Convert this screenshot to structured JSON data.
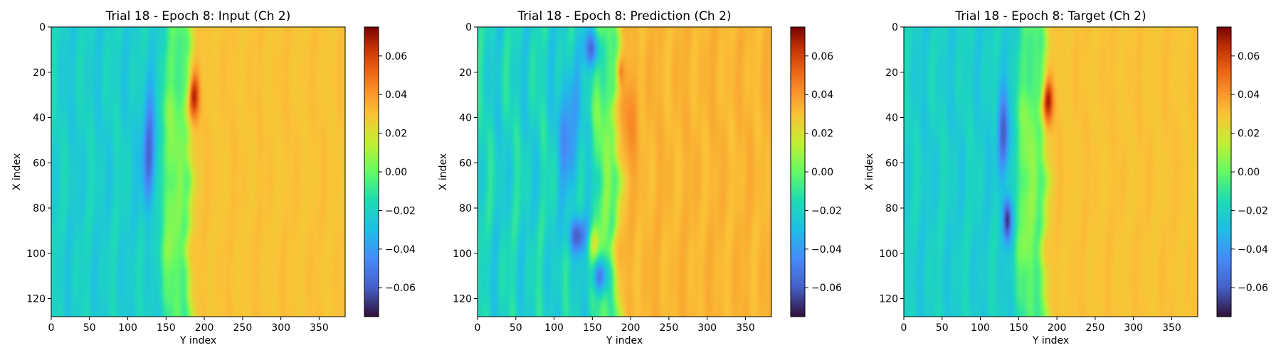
{
  "chart_data": [
    {
      "type": "heatmap",
      "title": "Trial 18 - Epoch 8: Input (Ch 2)",
      "xlabel": "Y index",
      "ylabel": "X index",
      "xlim": [
        0,
        384
      ],
      "ylim": [
        128,
        0
      ],
      "xticks": [
        "0",
        "50",
        "100",
        "150",
        "200",
        "250",
        "300",
        "350"
      ],
      "yticks": [
        "0",
        "20",
        "40",
        "60",
        "80",
        "100",
        "120"
      ],
      "colorbar": {
        "range": [
          -0.075,
          0.075
        ],
        "ticks": [
          "0.06",
          "0.04",
          "0.02",
          "0.00",
          "−0.02",
          "−0.04",
          "−0.06"
        ],
        "colormap": "turbo"
      },
      "field": {
        "front_y": 178,
        "front_wiggle": 3,
        "background_left": -0.022,
        "background_right": 0.03,
        "streak_amp": 0.01,
        "blobs": [
          {
            "x": 30,
            "y": 186,
            "sx": 10,
            "sy": 7,
            "v": 0.04
          },
          {
            "x": 55,
            "y": 128,
            "sx": 24,
            "sy": 9,
            "v": -0.04
          },
          {
            "x": 70,
            "y": 150,
            "sx": 45,
            "sy": 14,
            "v": 0.015
          }
        ]
      }
    },
    {
      "type": "heatmap",
      "title": "Trial 18 - Epoch 8: Prediction (Ch 2)",
      "xlabel": "Y index",
      "ylabel": "X index",
      "xlim": [
        0,
        384
      ],
      "ylim": [
        128,
        0
      ],
      "xticks": [
        "0",
        "50",
        "100",
        "150",
        "200",
        "250",
        "300",
        "350"
      ],
      "yticks": [
        "0",
        "20",
        "40",
        "60",
        "80",
        "100",
        "120"
      ],
      "colorbar": {
        "range": [
          -0.075,
          0.075
        ],
        "ticks": [
          "0.06",
          "0.04",
          "0.02",
          "0.00",
          "−0.02",
          "−0.04",
          "−0.06"
        ],
        "colormap": "turbo"
      },
      "field": {
        "front_y": 180,
        "front_wiggle": 5,
        "background_left": -0.02,
        "background_right": 0.033,
        "streak_amp": 0.016,
        "blobs": [
          {
            "x": 10,
            "y": 150,
            "sx": 8,
            "sy": 10,
            "v": -0.04
          },
          {
            "x": 20,
            "y": 186,
            "sx": 6,
            "sy": 5,
            "v": 0.02
          },
          {
            "x": 45,
            "y": 120,
            "sx": 25,
            "sy": 12,
            "v": -0.03
          },
          {
            "x": 92,
            "y": 130,
            "sx": 8,
            "sy": 12,
            "v": -0.04
          },
          {
            "x": 95,
            "y": 152,
            "sx": 7,
            "sy": 8,
            "v": 0.02
          },
          {
            "x": 110,
            "y": 160,
            "sx": 8,
            "sy": 10,
            "v": -0.045
          },
          {
            "x": 40,
            "y": 200,
            "sx": 20,
            "sy": 10,
            "v": 0.01
          }
        ]
      }
    },
    {
      "type": "heatmap",
      "title": "Trial 18 - Epoch 8: Target (Ch 2)",
      "xlabel": "Y index",
      "ylabel": "X index",
      "xlim": [
        0,
        384
      ],
      "ylim": [
        128,
        0
      ],
      "xticks": [
        "0",
        "50",
        "100",
        "150",
        "200",
        "250",
        "300",
        "350"
      ],
      "yticks": [
        "0",
        "20",
        "40",
        "60",
        "80",
        "100",
        "120"
      ],
      "colorbar": {
        "range": [
          -0.075,
          0.075
        ],
        "ticks": [
          "0.06",
          "0.04",
          "0.02",
          "0.00",
          "−0.02",
          "−0.04",
          "−0.06"
        ],
        "colormap": "turbo"
      },
      "field": {
        "front_y": 182,
        "front_wiggle": 3,
        "background_left": -0.022,
        "background_right": 0.03,
        "streak_amp": 0.01,
        "blobs": [
          {
            "x": 32,
            "y": 188,
            "sx": 10,
            "sy": 7,
            "v": 0.042
          },
          {
            "x": 48,
            "y": 130,
            "sx": 18,
            "sy": 8,
            "v": -0.04
          },
          {
            "x": 85,
            "y": 135,
            "sx": 10,
            "sy": 6,
            "v": -0.05
          },
          {
            "x": 70,
            "y": 155,
            "sx": 45,
            "sy": 14,
            "v": 0.015
          }
        ]
      }
    }
  ]
}
